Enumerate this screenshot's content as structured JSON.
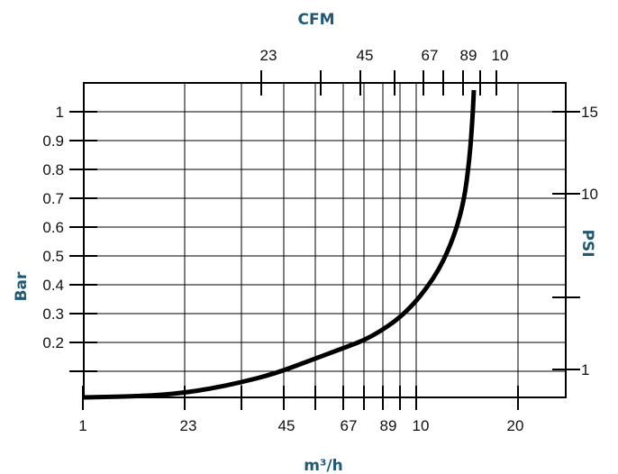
{
  "colors": {
    "axis_title": "#1e5a78",
    "curve": "#000000",
    "grid": "#000000",
    "background": "#ffffff"
  },
  "chart_data": {
    "type": "line",
    "title": "",
    "xlabel": "m³/h",
    "x2label": "CFM",
    "ylabel": "Bar",
    "y2label": "PSI",
    "grid": true,
    "x_ticks_bottom": [
      "1",
      "23",
      "45",
      "67",
      "89",
      "10",
      "20"
    ],
    "x_ticks_top": [
      "23",
      "45",
      "67",
      "89",
      "10"
    ],
    "y_ticks_left": [
      "1",
      "0.9",
      "0.8",
      "0.7",
      "0.6",
      "0.5",
      "0.4",
      "0.3",
      "0.2"
    ],
    "y_ticks_right": [
      "15",
      "10",
      "1"
    ],
    "ylim": [
      0,
      1.03
    ],
    "series": [
      {
        "x": [
          1,
          23,
          35,
          45,
          55,
          67,
          78,
          89,
          100,
          112,
          122,
          128,
          132,
          134,
          135,
          135.5
        ],
        "y": [
          0.0,
          0.005,
          0.015,
          0.03,
          0.05,
          0.08,
          0.12,
          0.16,
          0.2,
          0.28,
          0.4,
          0.52,
          0.65,
          0.8,
          0.93,
          1.03
        ]
      }
    ]
  }
}
